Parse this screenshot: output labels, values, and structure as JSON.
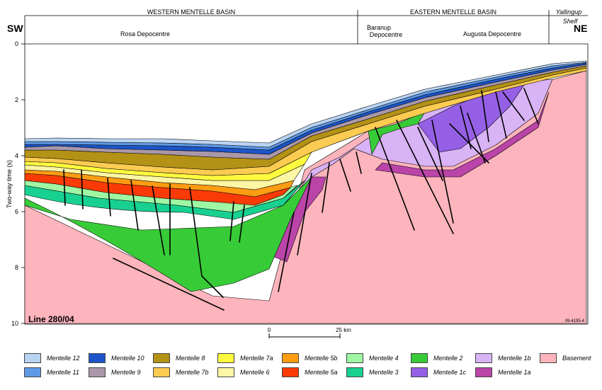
{
  "header": {
    "western_basin": "WESTERN MENTELLE BASIN",
    "eastern_basin": "EASTERN MENTELLE BASIN",
    "yallingup": "Yallingup",
    "shelf": "Shelf",
    "sw": "SW",
    "ne": "NE",
    "rosa": "Rosa Depocentre",
    "baranup_1": "Baranup",
    "baranup_2": "Depocentre",
    "augusta": "Augusta Depocentre"
  },
  "axis": {
    "ylabel": "Two-way time (s)",
    "ticks": [
      "0",
      "2",
      "4",
      "6",
      "8",
      "10"
    ]
  },
  "section": {
    "line_label": "Line 280/04",
    "figure_id": "09-4195-4"
  },
  "scale": {
    "start": "0",
    "end": "25 km"
  },
  "colors": {
    "m12": "#b9d3f3",
    "m11": "#5f9ae6",
    "m10": "#1d55c9",
    "m9": "#aa98aa",
    "m8": "#b39216",
    "m7b": "#fccb51",
    "m7a": "#fefa3e",
    "m6": "#fdf6a4",
    "m5b": "#fe9c12",
    "m5a": "#fb3b07",
    "m4": "#9ef7a3",
    "m3": "#18d191",
    "m2": "#37cc37",
    "m1c": "#9560e6",
    "m1b": "#d8b3f5",
    "m1a": "#ba44a8",
    "basement": "#fdb4bc"
  },
  "legend": [
    {
      "label": "Mentelle 12",
      "color": "#b9d3f3"
    },
    {
      "label": "Mentelle 11",
      "color": "#5f9ae6"
    },
    {
      "label": "Mentelle 10",
      "color": "#1d55c9"
    },
    {
      "label": "Mentelle 9",
      "color": "#aa98aa"
    },
    {
      "label": "Mentelle 8",
      "color": "#b39216"
    },
    {
      "label": "Mentelle 7b",
      "color": "#fccb51"
    },
    {
      "label": "Mentelle 7a",
      "color": "#fefa3e"
    },
    {
      "label": "Mentelle 6",
      "color": "#fdf6a4"
    },
    {
      "label": "Mentelle 5b",
      "color": "#fe9c12"
    },
    {
      "label": "Mentelle 5a",
      "color": "#fb3b07"
    },
    {
      "label": "Mentelle 4",
      "color": "#9ef7a3"
    },
    {
      "label": "Mentelle 3",
      "color": "#18d191"
    },
    {
      "label": "Mentelle 2",
      "color": "#37cc37"
    },
    {
      "label": "Mentelle 1c",
      "color": "#9560e6"
    },
    {
      "label": "Mentelle 1b",
      "color": "#d8b3f5"
    },
    {
      "label": "Mentelle 1a",
      "color": "#ba44a8"
    },
    {
      "label": "Basement",
      "color": "#fdb4bc"
    }
  ]
}
